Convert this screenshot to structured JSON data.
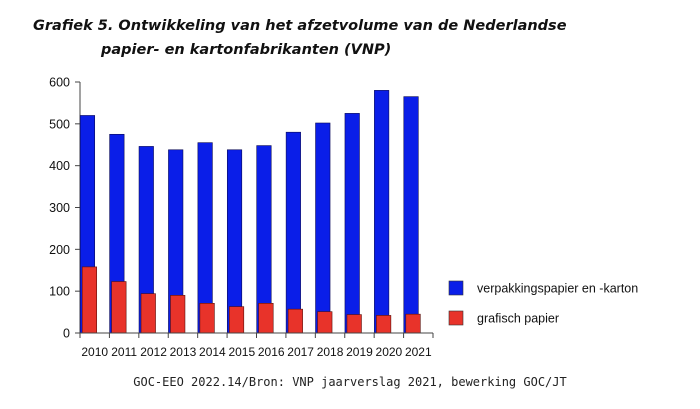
{
  "header": {
    "title_line1": "Grafiek 5. Ontwikkeling van het afzetvolume van de Nederlandse",
    "title_line2": "papier- en kartonfabrikanten (VNP)"
  },
  "footer": {
    "source": "GOC-EEO 2022.14/Bron: VNP jaarverslag 2021, bewerking GOC/JT"
  },
  "chart_data": {
    "type": "bar",
    "title": "Grafiek 5. Ontwikkeling van het afzetvolume van de Nederlandse papier- en kartonfabrikanten (VNP)",
    "xlabel": "",
    "ylabel": "",
    "categories": [
      "2010",
      "2011",
      "2012",
      "2013",
      "2014",
      "2015",
      "2016",
      "2017",
      "2018",
      "2019",
      "2020",
      "2021"
    ],
    "series": [
      {
        "name": "verpakkingspapier en -karton",
        "color": "#0a1ee8",
        "values": [
          520,
          475,
          446,
          438,
          455,
          438,
          448,
          480,
          502,
          525,
          580,
          565
        ]
      },
      {
        "name": "grafisch papier",
        "color": "#e8332a",
        "values": [
          158,
          123,
          94,
          90,
          71,
          63,
          71,
          57,
          51,
          44,
          42,
          45
        ]
      }
    ],
    "ylim": [
      0,
      600
    ],
    "yticks": [
      0,
      100,
      200,
      300,
      400,
      500,
      600
    ],
    "grid": false,
    "legend_position": "right"
  }
}
